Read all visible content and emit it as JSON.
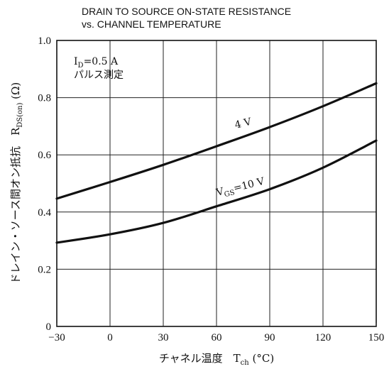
{
  "chart_data": {
    "type": "line",
    "title_lines": [
      "DRAIN TO SOURCE ON-STATE RESISTANCE",
      "vs. CHANNEL TEMPERATURE"
    ],
    "xlabel": "チャネル温度　T",
    "xlabel_sub": "ch",
    "xlabel_unit": " (°C)",
    "ylabel": "ドレイン・ソース間オン抵抗　R",
    "ylabel_sub": "DS(on)",
    "ylabel_unit": " (Ω)",
    "xlim": [
      -30,
      150
    ],
    "ylim": [
      0,
      1.0
    ],
    "x_ticks": [
      -30,
      0,
      30,
      60,
      90,
      120,
      150
    ],
    "x_tick_labels": [
      "−30",
      "0",
      "30",
      "60",
      "90",
      "120",
      "150"
    ],
    "y_ticks": [
      0,
      0.2,
      0.4,
      0.6,
      0.8,
      1.0
    ],
    "y_tick_labels": [
      "0",
      "0.2",
      "0.4",
      "0.6",
      "0.8",
      "1.0"
    ],
    "grid": true,
    "x": [
      -30,
      0,
      30,
      60,
      90,
      120,
      150
    ],
    "series": [
      {
        "name": "4 V",
        "values": [
          0.447,
          0.505,
          0.565,
          0.63,
          0.697,
          0.77,
          0.85
        ]
      },
      {
        "name": "V",
        "name_sub": "GS",
        "name_suffix": "=10 V",
        "values": [
          0.293,
          0.322,
          0.362,
          0.42,
          0.48,
          0.555,
          0.65
        ]
      }
    ],
    "conditions": {
      "line1_main": "I",
      "line1_sub": "D",
      "line1_rest": "=0.5 A",
      "line2": "パルス測定"
    }
  }
}
